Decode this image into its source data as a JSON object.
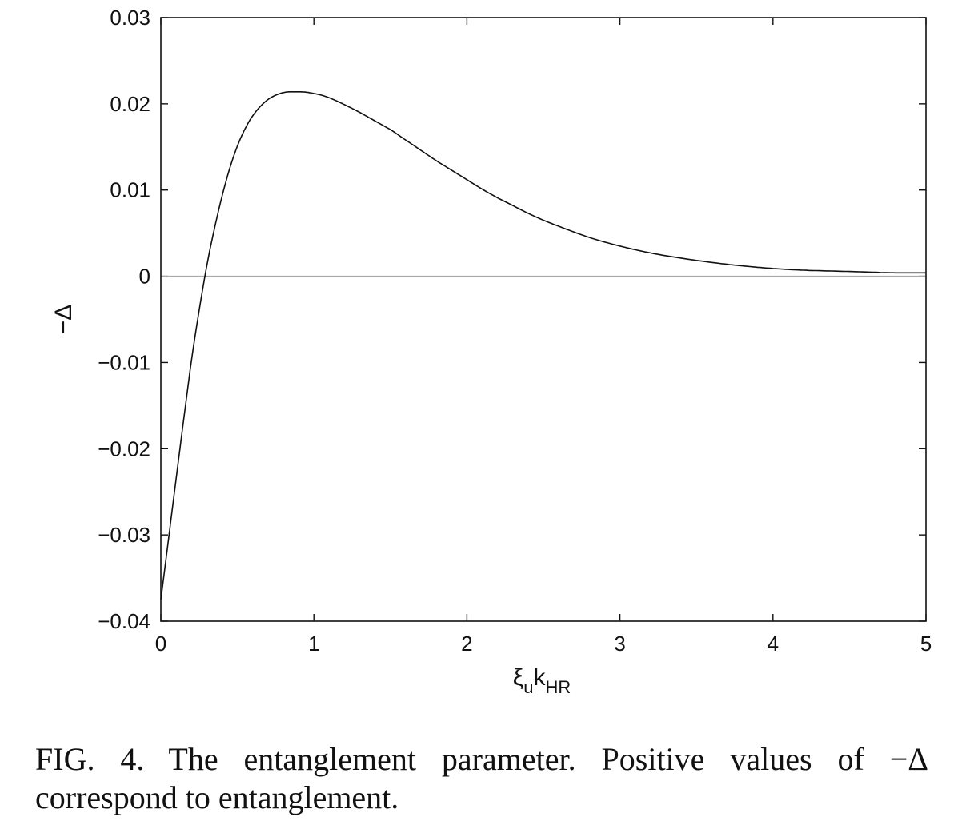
{
  "chart_data": {
    "type": "line",
    "xlabel": {
      "main": "ξ",
      "sub1": "u",
      "mid": "k",
      "sub2": "HR"
    },
    "ylabel": "−Δ",
    "xlim": [
      0,
      5
    ],
    "ylim": [
      -0.04,
      0.03
    ],
    "xticks": [
      {
        "value": 0,
        "label": "0"
      },
      {
        "value": 1,
        "label": "1"
      },
      {
        "value": 2,
        "label": "2"
      },
      {
        "value": 3,
        "label": "3"
      },
      {
        "value": 4,
        "label": "4"
      },
      {
        "value": 5,
        "label": "5"
      }
    ],
    "yticks": [
      {
        "value": -0.04,
        "label": "−0.04"
      },
      {
        "value": -0.03,
        "label": "−0.03"
      },
      {
        "value": -0.02,
        "label": "−0.02"
      },
      {
        "value": -0.01,
        "label": "−0.01"
      },
      {
        "value": 0,
        "label": "0"
      },
      {
        "value": 0.01,
        "label": "0.01"
      },
      {
        "value": 0.02,
        "label": "0.02"
      },
      {
        "value": 0.03,
        "label": "0.03"
      }
    ],
    "grid": false,
    "reference_line": {
      "y": 0,
      "color": "#aaaaaa"
    },
    "series": [
      {
        "color": "#111111",
        "x": [
          0,
          0.05,
          0.1,
          0.15,
          0.2,
          0.25,
          0.3,
          0.35,
          0.4,
          0.45,
          0.5,
          0.55,
          0.6,
          0.65,
          0.7,
          0.75,
          0.8,
          0.85,
          0.9,
          0.95,
          1.0,
          1.05,
          1.1,
          1.2,
          1.3,
          1.4,
          1.5,
          1.6,
          1.7,
          1.8,
          1.9,
          2.0,
          2.1,
          2.2,
          2.3,
          2.4,
          2.5,
          2.6,
          2.8,
          3.0,
          3.2,
          3.4,
          3.6,
          3.8,
          4.0,
          4.2,
          4.4,
          4.6,
          4.8,
          5.0
        ],
        "y": [
          -0.0375,
          -0.0305,
          -0.0235,
          -0.0165,
          -0.0098,
          -0.004,
          0.0012,
          0.0055,
          0.0093,
          0.0125,
          0.0151,
          0.0171,
          0.0186,
          0.0197,
          0.0205,
          0.021,
          0.0213,
          0.0214,
          0.0214,
          0.02135,
          0.0212,
          0.021,
          0.0207,
          0.0199,
          0.019,
          0.018,
          0.017,
          0.0158,
          0.0146,
          0.0134,
          0.0123,
          0.0112,
          0.0101,
          0.0091,
          0.0082,
          0.0073,
          0.0065,
          0.0058,
          0.0045,
          0.0035,
          0.0027,
          0.0021,
          0.0016,
          0.0012,
          0.0009,
          0.0007,
          0.0006,
          0.0005,
          0.0004,
          0.0004
        ]
      }
    ]
  },
  "caption": {
    "label": "FIG. 4.",
    "text": "The entanglement parameter. Positive values of −Δ correspond to entanglement."
  }
}
